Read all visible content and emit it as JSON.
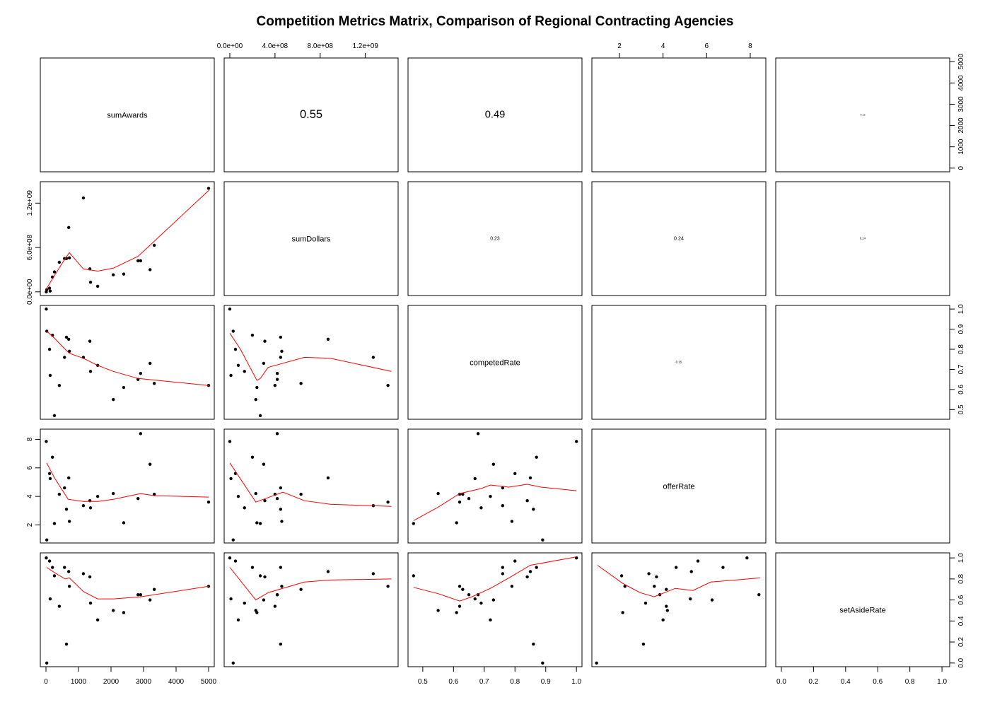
{
  "chart_data": {
    "type": "pairs",
    "title": "Competition Metrics Matrix, Comparison of Regional Contracting Agencies",
    "point_color": "#000000",
    "smooth_color": "#ff0000",
    "variables": [
      {
        "name": "sumAwards",
        "lim": [
          -174,
          5174
        ],
        "ticks": [
          0,
          1000,
          2000,
          3000,
          4000,
          5000
        ],
        "values": [
          10,
          25,
          110,
          130,
          200,
          260,
          410,
          570,
          630,
          700,
          720,
          1150,
          1350,
          1370,
          1590,
          2070,
          2390,
          2830,
          2910,
          3200,
          3330,
          5000
        ]
      },
      {
        "name": "sumDollars",
        "lim": [
          -50000000,
          1490000000
        ],
        "ticks": [
          {
            "value": 0,
            "label": "0.0e+00"
          },
          {
            "value": 400000000,
            "label": "4.0e+08"
          },
          {
            "value": 800000000,
            "label": "8.0e+08"
          },
          {
            "value": 1200000000,
            "label": "1.2e+09"
          }
        ],
        "side_ticks": [
          {
            "value": 0,
            "label": "0.0e+00"
          },
          {
            "value": 600000000,
            "label": "6.0e+08"
          },
          {
            "value": 1200000000,
            "label": "1.2e+09"
          }
        ],
        "values": [
          0,
          30000000,
          50000000,
          10000000,
          200000000,
          270000000,
          400000000,
          450000000,
          450000000,
          870000000,
          460000000,
          1270000000,
          310000000,
          130000000,
          75000000,
          230000000,
          240000000,
          420000000,
          420000000,
          300000000,
          630000000,
          1400000000
        ]
      },
      {
        "name": "competedRate",
        "lim": [
          0.452,
          1.018
        ],
        "ticks": [
          0.5,
          0.6,
          0.7,
          0.8,
          0.9,
          {
            "value": 1,
            "label": "1.0"
          }
        ],
        "values": [
          1,
          0.89,
          0.8,
          0.67,
          0.87,
          0.47,
          0.62,
          0.76,
          0.86,
          0.85,
          0.79,
          0.76,
          0.84,
          0.69,
          0.72,
          0.55,
          0.61,
          0.65,
          0.68,
          0.73,
          0.63,
          0.62
        ]
      },
      {
        "name": "offerRate",
        "lim": [
          0.735,
          8.715
        ],
        "ticks": [
          2,
          4,
          6,
          8
        ],
        "values": [
          7.85,
          0.95,
          5.6,
          5.25,
          6.75,
          2.1,
          4.15,
          4.6,
          3.1,
          5.3,
          2.25,
          3.35,
          3.7,
          3.2,
          4.0,
          4.2,
          2.15,
          3.85,
          8.4,
          6.25,
          4.15,
          3.6
        ]
      },
      {
        "name": "setAsideRate",
        "lim": [
          -0.035,
          1.048
        ],
        "ticks": [
          {
            "value": 0,
            "label": "0.0"
          },
          0.2,
          0.4,
          0.6,
          0.8,
          {
            "value": 1,
            "label": "1.0"
          }
        ],
        "values": [
          1,
          0,
          0.97,
          0.61,
          0.91,
          0.83,
          0.54,
          0.91,
          0.18,
          0.87,
          0.73,
          0.85,
          0.82,
          0.57,
          0.41,
          0.5,
          0.48,
          0.65,
          0.65,
          0.6,
          0.7,
          0.73
        ]
      }
    ],
    "correlations": [
      [
        null,
        0.55,
        0.49,
        null,
        0.12
      ],
      [
        null,
        null,
        0.23,
        0.24,
        0.14
      ],
      [
        null,
        null,
        null,
        0.15,
        null
      ],
      [
        null,
        null,
        null,
        null,
        null
      ],
      [
        null,
        null,
        null,
        null,
        null
      ]
    ],
    "smooths": [
      [
        null,
        null,
        null,
        null,
        null
      ],
      [
        {
          "x": [
            0,
            150,
            260,
            390,
            590,
            720,
            1150,
            1590,
            2070,
            2830,
            5000
          ],
          "y": [
            30000000,
            140000000,
            220000000,
            310000000,
            450000000,
            530000000,
            310000000,
            280000000,
            320000000,
            480000000,
            1370000000
          ]
        },
        null,
        null,
        null,
        null
      ],
      [
        {
          "x": [
            20,
            260,
            590,
            720,
            1150,
            1590,
            2070,
            2830,
            5000
          ],
          "y": [
            0.89,
            0.855,
            0.8,
            0.78,
            0.755,
            0.72,
            0.69,
            0.655,
            0.62
          ]
        },
        {
          "x": [
            0,
            94000000,
            240000000,
            270000000,
            340000000,
            660000000,
            890000000,
            1430000000
          ],
          "y": [
            0.88,
            0.8,
            0.645,
            0.655,
            0.71,
            0.76,
            0.755,
            0.69
          ]
        },
        null,
        null,
        null
      ],
      [
        {
          "x": [
            20,
            260,
            680,
            1150,
            1590,
            2070,
            2910,
            3330,
            5000
          ],
          "y": [
            6.35,
            5.3,
            3.8,
            3.65,
            3.65,
            3.8,
            4.2,
            4.05,
            3.95
          ]
        },
        {
          "x": [
            0,
            230000000,
            470000000,
            660000000,
            890000000,
            1430000000
          ],
          "y": [
            6.35,
            3.6,
            4.3,
            3.7,
            3.45,
            3.3
          ]
        },
        {
          "x": [
            0.47,
            0.55,
            0.62,
            0.69,
            0.72,
            0.78,
            0.84,
            0.885,
            1
          ],
          "y": [
            2.3,
            3.25,
            4.2,
            4.55,
            4.8,
            4.65,
            4.85,
            4.65,
            4.4
          ]
        },
        null,
        null
      ],
      [
        {
          "x": [
            20,
            260,
            590,
            720,
            1150,
            1590,
            2070,
            2910,
            5000
          ],
          "y": [
            0.91,
            0.86,
            0.8,
            0.81,
            0.68,
            0.61,
            0.61,
            0.63,
            0.73
          ]
        },
        {
          "x": [
            0,
            230000000,
            340000000,
            660000000,
            890000000,
            1430000000
          ],
          "y": [
            0.91,
            0.6,
            0.67,
            0.77,
            0.79,
            0.8
          ]
        },
        {
          "x": [
            0.47,
            0.55,
            0.62,
            0.66,
            0.72,
            0.78,
            0.85,
            1
          ],
          "y": [
            0.72,
            0.66,
            0.59,
            0.63,
            0.71,
            0.81,
            0.93,
            1.01
          ]
        },
        {
          "x": [
            0.99,
            2.13,
            2.94,
            3.59,
            4.56,
            5.37,
            6.18,
            7.32,
            8.45
          ],
          "y": [
            0.93,
            0.76,
            0.67,
            0.63,
            0.71,
            0.69,
            0.77,
            0.79,
            0.81
          ]
        },
        null
      ]
    ]
  }
}
